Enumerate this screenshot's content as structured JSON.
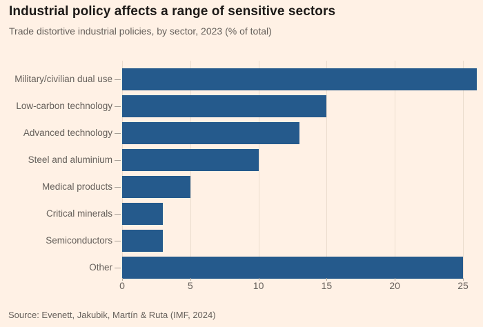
{
  "header": {
    "title": "Industrial policy affects a range of sensitive sectors",
    "subtitle": "Trade distortive industrial policies, by sector, 2023 (% of total)"
  },
  "footer": {
    "source": "Source: Evenett, Jakubik, Martín & Ruta (IMF, 2024)"
  },
  "colors": {
    "background": "#FFF1E5",
    "bar": "#255A8C",
    "gridline": "#EBDCCD",
    "title_text": "#1C1917",
    "muted_text": "#66605B"
  },
  "chart_data": {
    "type": "bar",
    "orientation": "horizontal",
    "title": "Industrial policy affects a range of sensitive sectors",
    "subtitle": "Trade distortive industrial policies, by sector, 2023 (% of total)",
    "source": "Source: Evenett, Jakubik, Martín & Ruta (IMF, 2024)",
    "categories": [
      "Military/civilian dual use",
      "Low-carbon technology",
      "Advanced technology",
      "Steel and aluminium",
      "Medical products",
      "Critical minerals",
      "Semiconductors",
      "Other"
    ],
    "values": [
      26,
      15,
      13,
      10,
      5,
      3,
      3,
      25
    ],
    "xlabel": "",
    "ylabel": "",
    "xticks": [
      0,
      5,
      10,
      15,
      20,
      25
    ],
    "xlim": [
      0,
      26
    ],
    "grid": true,
    "legend": false,
    "unit": "% of total"
  }
}
